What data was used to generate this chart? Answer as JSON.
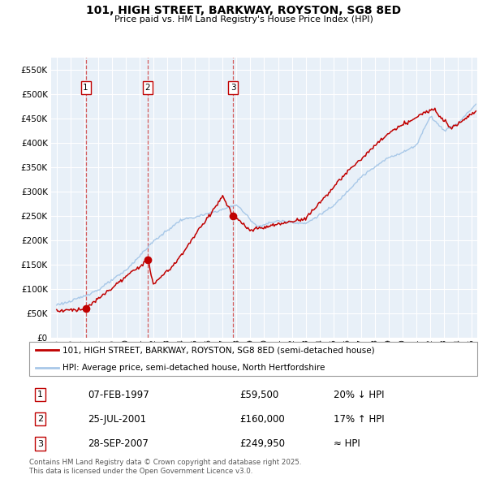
{
  "title": "101, HIGH STREET, BARKWAY, ROYSTON, SG8 8ED",
  "subtitle": "Price paid vs. HM Land Registry's House Price Index (HPI)",
  "legend_line1": "101, HIGH STREET, BARKWAY, ROYSTON, SG8 8ED (semi-detached house)",
  "legend_line2": "HPI: Average price, semi-detached house, North Hertfordshire",
  "footer": "Contains HM Land Registry data © Crown copyright and database right 2025.\nThis data is licensed under the Open Government Licence v3.0.",
  "transactions": [
    {
      "num": 1,
      "date": "07-FEB-1997",
      "price": "£59,500",
      "relation": "20% ↓ HPI",
      "x_year": 1997.1
    },
    {
      "num": 2,
      "date": "25-JUL-2001",
      "price": "£160,000",
      "relation": "17% ↑ HPI",
      "x_year": 2001.58
    },
    {
      "num": 3,
      "date": "28-SEP-2007",
      "price": "£249,950",
      "relation": "≈ HPI",
      "x_year": 2007.75
    }
  ],
  "sale_prices": [
    59500,
    160000,
    249950
  ],
  "hpi_color": "#a8c8e8",
  "price_color": "#c00000",
  "vline_color": "#d04040",
  "background_chart": "#e8f0f8",
  "background_fig": "#ffffff",
  "ylim": [
    0,
    575000
  ],
  "xlim_start": 1994.6,
  "xlim_end": 2025.4,
  "yticks": [
    0,
    50000,
    100000,
    150000,
    200000,
    250000,
    300000,
    350000,
    400000,
    450000,
    500000,
    550000
  ],
  "xticks": [
    1995,
    1996,
    1997,
    1998,
    1999,
    2000,
    2001,
    2002,
    2003,
    2004,
    2005,
    2006,
    2007,
    2008,
    2009,
    2010,
    2011,
    2012,
    2013,
    2014,
    2015,
    2016,
    2017,
    2018,
    2019,
    2020,
    2021,
    2022,
    2023,
    2024,
    2025
  ]
}
